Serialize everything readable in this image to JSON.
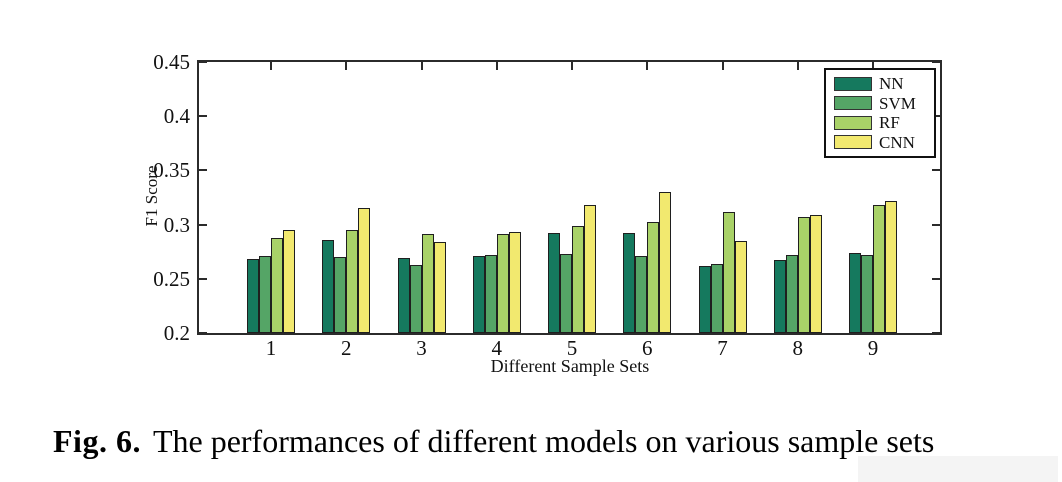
{
  "figure": {
    "caption_label": "Fig. 6.",
    "caption_text": "The performances of different models on various sample sets"
  },
  "chart_data": {
    "type": "bar",
    "title": "",
    "xlabel": "Different Sample Sets",
    "ylabel": "F1 Score",
    "categories": [
      "1",
      "2",
      "3",
      "4",
      "5",
      "6",
      "7",
      "8",
      "9"
    ],
    "series": [
      {
        "name": "NN",
        "color": "#15795e",
        "values": [
          0.268,
          0.286,
          0.269,
          0.271,
          0.292,
          0.292,
          0.262,
          0.267,
          0.274
        ]
      },
      {
        "name": "SVM",
        "color": "#55a566",
        "values": [
          0.271,
          0.27,
          0.263,
          0.272,
          0.273,
          0.271,
          0.264,
          0.272,
          0.272
        ]
      },
      {
        "name": "RF",
        "color": "#a9d268",
        "values": [
          0.288,
          0.295,
          0.291,
          0.291,
          0.299,
          0.302,
          0.312,
          0.307,
          0.318
        ]
      },
      {
        "name": "CNN",
        "color": "#f2e96f",
        "values": [
          0.295,
          0.315,
          0.284,
          0.293,
          0.318,
          0.33,
          0.285,
          0.309,
          0.322
        ]
      }
    ],
    "ylim": [
      0.2,
      0.45
    ],
    "yticks": [
      0.2,
      0.25,
      0.3,
      0.35,
      0.4,
      0.45
    ],
    "grid": false,
    "legend_position": "top-right",
    "bar_edge_color": "#1f1f1f",
    "axis_color": "#2b2b2b"
  }
}
